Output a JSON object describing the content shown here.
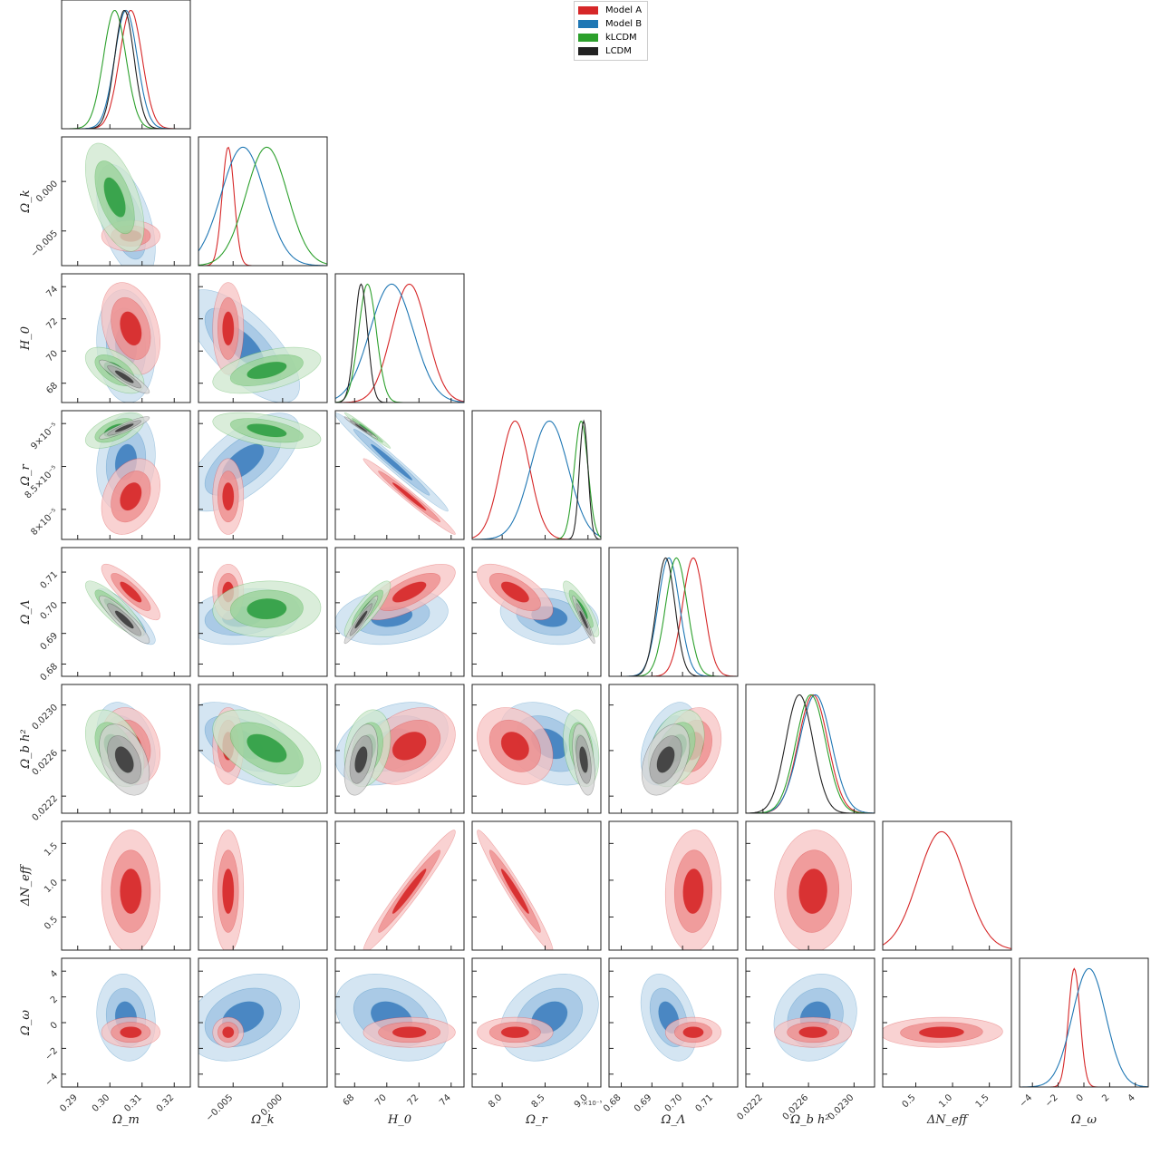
{
  "chart_data": {
    "type": "triangle-plot",
    "legend": {
      "placement": "top-center",
      "entries": [
        {
          "name": "Model A",
          "color": "#d62728"
        },
        {
          "name": "Model B",
          "color": "#1f77b4"
        },
        {
          "name": "kLCDM",
          "color": "#2ca02c"
        },
        {
          "name": "LCDM",
          "color": "#222222"
        }
      ]
    },
    "parameters": [
      {
        "key": "om",
        "label": "Ω_m",
        "range": [
          0.285,
          0.325
        ],
        "ticks": [
          0.29,
          0.3,
          0.31,
          0.32
        ],
        "tick_labels": [
          "0.29",
          "0.30",
          "0.31",
          "0.32"
        ]
      },
      {
        "key": "ok",
        "label": "Ω_k",
        "range": [
          -0.0085,
          0.0045
        ],
        "ticks": [
          -0.005,
          0.0
        ],
        "tick_labels": [
          "−0.005",
          "0.000"
        ]
      },
      {
        "key": "h0",
        "label": "H_0",
        "range": [
          66.8,
          74.8
        ],
        "ticks": [
          68,
          70,
          72,
          74
        ],
        "tick_labels": [
          "68",
          "70",
          "72",
          "74"
        ]
      },
      {
        "key": "or",
        "label": "Ω_r",
        "range": [
          7.65,
          9.15
        ],
        "ticks": [
          8.0,
          8.5,
          9.0
        ],
        "tick_labels": [
          "8.0",
          "8.5",
          "9.0"
        ],
        "offset_label": "×10⁻⁵",
        "row_tick_labels": [
          "8×10⁻⁵",
          "8.5×10⁻⁵",
          "9×10⁻⁵"
        ]
      },
      {
        "key": "ol",
        "label": "Ω_Λ",
        "range": [
          0.676,
          0.718
        ],
        "ticks": [
          0.68,
          0.69,
          0.7,
          0.71
        ],
        "tick_labels": [
          "0.68",
          "0.69",
          "0.70",
          "0.71"
        ]
      },
      {
        "key": "obh2",
        "label": "Ω_b h²",
        "range": [
          0.02205,
          0.02318
        ],
        "ticks": [
          0.0222,
          0.0226,
          0.023
        ],
        "tick_labels": [
          "0.0222",
          "0.0226",
          "0.0230"
        ]
      },
      {
        "key": "neff",
        "label": "ΔN_eff",
        "range": [
          0.05,
          1.8
        ],
        "ticks": [
          0.5,
          1.0,
          1.5
        ],
        "tick_labels": [
          "0.5",
          "1.0",
          "1.5"
        ]
      },
      {
        "key": "ow",
        "label": "Ω_ω",
        "range": [
          -5,
          5
        ],
        "ticks": [
          -4,
          -2,
          0,
          2,
          4
        ],
        "tick_labels": [
          "−4",
          "−2",
          "0",
          "2",
          "4"
        ]
      }
    ],
    "models": {
      "A": {
        "name": "Model A",
        "color": "#d62728",
        "params": {
          "om": [
            0.3065,
            0.0035
          ],
          "h0": [
            71.4,
            1.1
          ],
          "or": [
            8.15,
            0.17
          ],
          "ol": [
            0.7035,
            0.0035
          ],
          "obh2": [
            0.02264,
            0.00013
          ],
          "neff": [
            0.85,
            0.32
          ],
          "ow": [
            -0.75,
            0.45
          ],
          "ok": [
            -0.0055,
            0.0006
          ]
        }
      },
      "B": {
        "name": "Model B",
        "color": "#1f77b4",
        "params": {
          "om": [
            0.305,
            0.0035
          ],
          "ok": [
            -0.004,
            0.0022
          ],
          "h0": [
            70.3,
            1.35
          ],
          "or": [
            8.55,
            0.22
          ],
          "ol": [
            0.6955,
            0.0035
          ],
          "obh2": [
            0.02266,
            0.00014
          ],
          "ow": [
            0.4,
            1.3
          ]
        }
      },
      "kLCDM": {
        "name": "kLCDM",
        "color": "#2ca02c",
        "params": {
          "om": [
            0.3015,
            0.0035
          ],
          "ok": [
            -0.0016,
            0.0021
          ],
          "h0": [
            68.8,
            0.55
          ],
          "or": [
            8.92,
            0.08
          ],
          "ol": [
            0.698,
            0.0035
          ],
          "obh2": [
            0.02262,
            0.00013
          ]
        }
      },
      "LCDM": {
        "name": "LCDM",
        "color": "#222222",
        "params": {
          "om": [
            0.3045,
            0.003
          ],
          "h0": [
            68.4,
            0.4
          ],
          "or": [
            8.95,
            0.05
          ],
          "ol": [
            0.6945,
            0.003
          ],
          "obh2": [
            0.02252,
            0.00012
          ]
        }
      }
    },
    "correlations": {
      "A": {
        "om-h0": -0.3,
        "om-or": 0.3,
        "h0-or": -0.99,
        "om-ol": -0.85,
        "h0-ol": 0.7,
        "or-ol": -0.65,
        "om-obh2": -0.2,
        "h0-obh2": 0.3,
        "or-obh2": -0.25,
        "ol-obh2": 0.2,
        "om-neff": 0.0,
        "h0-neff": 0.97,
        "or-neff": -0.97,
        "ol-neff": 0.05,
        "obh2-neff": 0.05,
        "neff-ow": 0.05
      },
      "B": {
        "om-ok": -0.5,
        "om-h0": -0.1,
        "ok-h0": -0.7,
        "om-or": 0.15,
        "ok-or": 0.65,
        "h0-or": -0.99,
        "om-ol": -0.85,
        "ok-ol": 0.2,
        "h0-ol": 0.2,
        "or-ol": -0.2,
        "om-obh2": -0.3,
        "ok-obh2": -0.5,
        "h0-obh2": 0.35,
        "or-obh2": -0.35,
        "ol-obh2": 0.4,
        "om-ow": -0.1,
        "ok-ow": 0.3,
        "h0-ow": -0.3,
        "or-ow": 0.3,
        "ol-ow": -0.35,
        "obh2-ow": 0.15
      },
      "kLCDM": {
        "om-ok": -0.55,
        "om-h0": -0.55,
        "ok-h0": 0.5,
        "om-or": 0.55,
        "ok-or": -0.5,
        "h0-or": -0.99,
        "om-ol": -0.85,
        "ok-ol": 0.05,
        "h0-ol": 0.85,
        "or-ol": -0.85,
        "om-obh2": -0.4,
        "ok-obh2": -0.5,
        "h0-obh2": 0.25,
        "or-obh2": -0.25,
        "ol-obh2": 0.35
      },
      "LCDM": {
        "om-h0": -0.9,
        "om-or": 0.9,
        "h0-or": -0.99,
        "om-ol": -0.9,
        "h0-ol": 0.95,
        "or-ol": -0.95,
        "om-obh2": -0.4,
        "h0-obh2": 0.4,
        "or-obh2": -0.4,
        "ol-obh2": 0.4
      }
    },
    "grid": false
  }
}
